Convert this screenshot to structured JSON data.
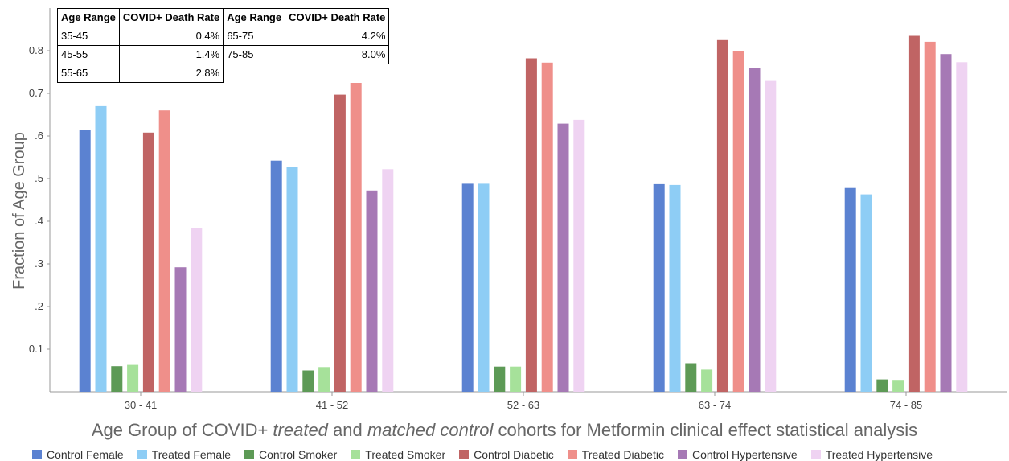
{
  "chart_data": {
    "type": "bar",
    "ylabel": "Fraction of Age Group",
    "xlabel_parts": [
      {
        "text": "Age Group of COVID+ ",
        "italic": false
      },
      {
        "text": "treated",
        "italic": true
      },
      {
        "text": " and ",
        "italic": false
      },
      {
        "text": "matched control",
        "italic": true
      },
      {
        "text": " cohorts for Metformin clinical effect statistical analysis",
        "italic": false
      }
    ],
    "categories": [
      "30 - 41",
      "41 - 52",
      "52 - 63",
      "63 - 74",
      "74 - 85"
    ],
    "y_ticks": [
      {
        "value": 0.1,
        "label": "0.1"
      },
      {
        "value": 0.2,
        "label": ".2"
      },
      {
        "value": 0.3,
        "label": ".3"
      },
      {
        "value": 0.4,
        "label": ".4"
      },
      {
        "value": 0.5,
        "label": ".5"
      },
      {
        "value": 0.6,
        "label": ".6"
      },
      {
        "value": 0.7,
        "label": "0.7"
      },
      {
        "value": 0.8,
        "label": "0.8"
      }
    ],
    "ylim": [
      0,
      0.9
    ],
    "grid": false,
    "legend_position": "bottom",
    "series": [
      {
        "name": "Control Female",
        "color": "#5b82d1",
        "values": [
          0.615,
          0.542,
          0.488,
          0.487,
          0.478
        ]
      },
      {
        "name": "Treated Female",
        "color": "#8ecdf5",
        "values": [
          0.67,
          0.527,
          0.488,
          0.485,
          0.463
        ]
      },
      {
        "name": "Control Smoker",
        "color": "#5d9a56",
        "values": [
          0.06,
          0.05,
          0.059,
          0.067,
          0.029
        ]
      },
      {
        "name": "Treated Smoker",
        "color": "#a6e19a",
        "values": [
          0.063,
          0.058,
          0.059,
          0.052,
          0.028
        ]
      },
      {
        "name": "Control Diabetic",
        "color": "#c06464",
        "values": [
          0.608,
          0.697,
          0.782,
          0.825,
          0.835
        ]
      },
      {
        "name": "Treated Diabetic",
        "color": "#ef8f8a",
        "values": [
          0.66,
          0.725,
          0.772,
          0.8,
          0.821
        ]
      },
      {
        "name": "Control Hypertensive",
        "color": "#a679b5",
        "values": [
          0.292,
          0.472,
          0.629,
          0.759,
          0.792
        ]
      },
      {
        "name": "Treated Hypertensive",
        "color": "#efd3f2",
        "values": [
          0.385,
          0.522,
          0.638,
          0.729,
          0.773
        ]
      }
    ]
  },
  "rates_table": {
    "headers": [
      "Age Range",
      "COVID+ Death Rate",
      "Age Range",
      "COVID+ Death Rate"
    ],
    "rows": [
      {
        "a_range": "35-45",
        "a_rate": "0.4%",
        "b_range": "65-75",
        "b_rate": "4.2%"
      },
      {
        "a_range": "45-55",
        "a_rate": "1.4%",
        "b_range": "75-85",
        "b_rate": "8.0%"
      },
      {
        "a_range": "55-65",
        "a_rate": "2.8%",
        "b_range": "",
        "b_rate": ""
      }
    ]
  }
}
